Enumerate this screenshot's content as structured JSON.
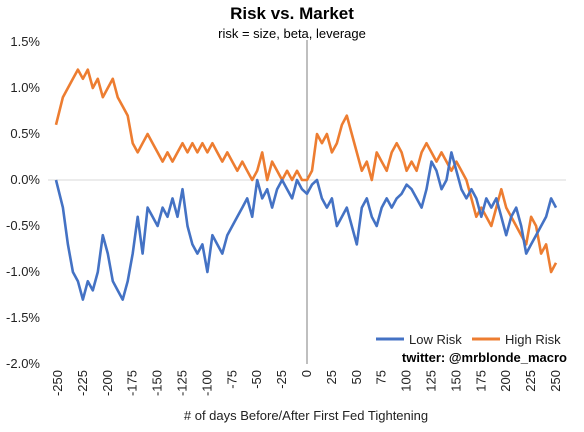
{
  "chart_data": {
    "type": "line",
    "title": "Risk vs. Market",
    "subtitle": "risk = size, beta, leverage",
    "xlabel": "# of days Before/After First Fed Tightening",
    "ylabel": "",
    "xlim": [
      -260,
      260
    ],
    "ylim": [
      -0.02,
      0.015
    ],
    "x_ticks": [
      -250,
      -225,
      -200,
      -175,
      -150,
      -125,
      -100,
      -75,
      -50,
      -25,
      0,
      25,
      50,
      75,
      100,
      125,
      150,
      175,
      200,
      225,
      250
    ],
    "x_tick_labels": [
      "-250",
      "-225",
      "-200",
      "-175",
      "-150",
      "-125",
      "-100",
      "-75",
      "-50",
      "-25",
      "0",
      "25",
      "50",
      "75",
      "100",
      "125",
      "150",
      "175",
      "200",
      "225",
      "250"
    ],
    "y_ticks": [
      0.015,
      0.01,
      0.005,
      0.0,
      -0.005,
      -0.01,
      -0.015,
      -0.02
    ],
    "y_tick_labels": [
      "1.5%",
      "1.0%",
      "0.5%",
      "0.0%",
      "-0.5%",
      "-1.0%",
      "-1.5%",
      "-2.0%"
    ],
    "zero_line": true,
    "vertical_marker_x": 0,
    "legend_position": "bottom-right",
    "annotation": "twitter: @mrblonde_macro",
    "series": [
      {
        "name": "Low Risk",
        "color": "#4472c4",
        "x": [
          -252,
          -245,
          -240,
          -235,
          -230,
          -225,
          -220,
          -215,
          -210,
          -205,
          -200,
          -195,
          -190,
          -185,
          -180,
          -175,
          -170,
          -165,
          -160,
          -155,
          -150,
          -145,
          -140,
          -135,
          -130,
          -125,
          -120,
          -115,
          -110,
          -105,
          -100,
          -95,
          -90,
          -85,
          -80,
          -75,
          -70,
          -65,
          -60,
          -55,
          -50,
          -45,
          -40,
          -35,
          -30,
          -25,
          -20,
          -15,
          -10,
          -5,
          0,
          5,
          10,
          15,
          20,
          25,
          30,
          35,
          40,
          45,
          50,
          55,
          60,
          65,
          70,
          75,
          80,
          85,
          90,
          95,
          100,
          105,
          110,
          115,
          120,
          125,
          130,
          135,
          140,
          145,
          150,
          155,
          160,
          165,
          170,
          175,
          180,
          185,
          190,
          195,
          200,
          205,
          210,
          215,
          220,
          225,
          230,
          235,
          240,
          245,
          250
        ],
        "y": [
          0.0,
          -0.003,
          -0.007,
          -0.01,
          -0.011,
          -0.013,
          -0.011,
          -0.012,
          -0.01,
          -0.006,
          -0.008,
          -0.011,
          -0.012,
          -0.013,
          -0.011,
          -0.008,
          -0.004,
          -0.008,
          -0.003,
          -0.004,
          -0.005,
          -0.003,
          -0.004,
          -0.002,
          -0.004,
          -0.001,
          -0.005,
          -0.007,
          -0.008,
          -0.007,
          -0.01,
          -0.006,
          -0.007,
          -0.008,
          -0.006,
          -0.005,
          -0.004,
          -0.003,
          -0.002,
          -0.004,
          0.0,
          -0.002,
          -0.001,
          -0.003,
          -0.001,
          0.0,
          -0.001,
          -0.002,
          0.0,
          -0.001,
          -0.0015,
          -0.0005,
          0.0,
          -0.002,
          -0.003,
          -0.002,
          -0.005,
          -0.004,
          -0.003,
          -0.005,
          -0.007,
          -0.003,
          -0.002,
          -0.004,
          -0.005,
          -0.003,
          -0.002,
          -0.003,
          -0.002,
          -0.0015,
          -0.0005,
          -0.001,
          -0.002,
          -0.003,
          -0.001,
          0.002,
          0.001,
          -0.001,
          0.0,
          0.003,
          0.001,
          -0.001,
          -0.002,
          -0.001,
          -0.002,
          -0.004,
          -0.002,
          -0.003,
          -0.002,
          -0.004,
          -0.006,
          -0.004,
          -0.003,
          -0.005,
          -0.008,
          -0.007,
          -0.006,
          -0.005,
          -0.004,
          -0.002,
          -0.003
        ]
      },
      {
        "name": "High Risk",
        "color": "#ed7d31",
        "x": [
          -252,
          -245,
          -240,
          -235,
          -230,
          -225,
          -220,
          -215,
          -210,
          -205,
          -200,
          -195,
          -190,
          -185,
          -180,
          -175,
          -170,
          -165,
          -160,
          -155,
          -150,
          -145,
          -140,
          -135,
          -130,
          -125,
          -120,
          -115,
          -110,
          -105,
          -100,
          -95,
          -90,
          -85,
          -80,
          -75,
          -70,
          -65,
          -60,
          -55,
          -50,
          -45,
          -40,
          -35,
          -30,
          -25,
          -20,
          -15,
          -10,
          -5,
          0,
          5,
          10,
          15,
          20,
          25,
          30,
          35,
          40,
          45,
          50,
          55,
          60,
          65,
          70,
          75,
          80,
          85,
          90,
          95,
          100,
          105,
          110,
          115,
          120,
          125,
          130,
          135,
          140,
          145,
          150,
          155,
          160,
          165,
          170,
          175,
          180,
          185,
          190,
          195,
          200,
          205,
          210,
          215,
          220,
          225,
          230,
          235,
          240,
          245,
          250
        ],
        "y": [
          0.006,
          0.009,
          0.01,
          0.011,
          0.012,
          0.011,
          0.012,
          0.01,
          0.011,
          0.009,
          0.01,
          0.011,
          0.009,
          0.008,
          0.007,
          0.004,
          0.003,
          0.004,
          0.005,
          0.004,
          0.003,
          0.002,
          0.003,
          0.002,
          0.003,
          0.004,
          0.003,
          0.004,
          0.003,
          0.004,
          0.003,
          0.004,
          0.003,
          0.002,
          0.003,
          0.002,
          0.001,
          0.002,
          0.001,
          0.0,
          0.001,
          0.003,
          0.0,
          0.002,
          0.001,
          0.0,
          0.001,
          0.0,
          0.001,
          0.0,
          0.0,
          0.001,
          0.005,
          0.004,
          0.005,
          0.003,
          0.004,
          0.006,
          0.007,
          0.005,
          0.003,
          0.001,
          0.002,
          0.0,
          0.003,
          0.002,
          0.001,
          0.003,
          0.004,
          0.003,
          0.001,
          0.002,
          0.001,
          0.003,
          0.004,
          0.003,
          0.002,
          0.003,
          0.002,
          0.001,
          0.002,
          0.001,
          0.0,
          -0.002,
          -0.004,
          -0.003,
          -0.004,
          -0.005,
          -0.003,
          -0.001,
          -0.003,
          -0.004,
          -0.005,
          -0.006,
          -0.007,
          -0.004,
          -0.005,
          -0.008,
          -0.007,
          -0.01,
          -0.009
        ]
      }
    ]
  }
}
